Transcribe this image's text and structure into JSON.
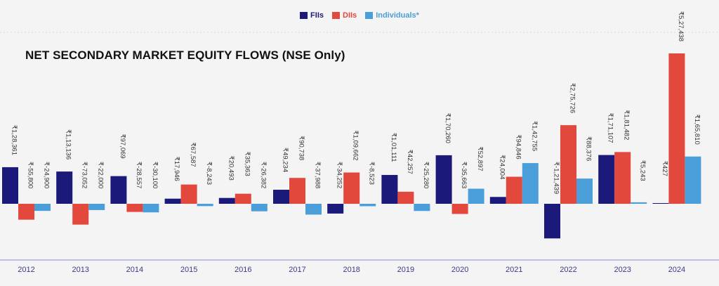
{
  "legend": {
    "items": [
      {
        "name": "FIIs",
        "color": "#1b1a7a"
      },
      {
        "name": "DIIs",
        "color": "#e3483d"
      },
      {
        "name": "Individuals*",
        "color": "#4a9ed9"
      }
    ]
  },
  "chart_data": {
    "type": "bar",
    "title": "NET SECONDARY MARKET EQUITY FLOWS (NSE Only)",
    "xlabel": "",
    "ylabel": "",
    "legend_position": "top-center",
    "grid": false,
    "ylim": [
      -125000,
      530000
    ],
    "categories": [
      "2012",
      "2013",
      "2014",
      "2015",
      "2016",
      "2017",
      "2018",
      "2019",
      "2020",
      "2021",
      "2022",
      "2023",
      "2024"
    ],
    "series": [
      {
        "name": "FIIs",
        "color": "#1b1a7a",
        "values": [
          128361,
          113136,
          97069,
          17946,
          20493,
          49234,
          -34252,
          101111,
          170260,
          24004,
          -121439,
          171107,
          427
        ],
        "labels": [
          "₹1,28,361",
          "₹1,13,136",
          "₹97,069",
          "₹17,946",
          "₹20,493",
          "₹49,234",
          "₹-34,252",
          "₹1,01,111",
          "₹1,70,260",
          "₹24,004",
          "₹-1,21,439",
          "₹1,71,107",
          "₹427"
        ]
      },
      {
        "name": "DIIs",
        "color": "#e3483d",
        "values": [
          -55800,
          -73052,
          -28557,
          67587,
          35363,
          90738,
          109662,
          42257,
          -35663,
          94846,
          275726,
          181482,
          527438
        ],
        "labels": [
          "₹-55,800",
          "₹-73,052",
          "₹-28,557",
          "₹67,587",
          "₹35,363",
          "₹90,738",
          "₹1,09,662",
          "₹42,257",
          "₹-35,663",
          "₹94,846",
          "₹2,75,726",
          "₹1,81,482",
          "₹5,27,438"
        ]
      },
      {
        "name": "Individuals*",
        "color": "#4a9ed9",
        "values": [
          -24900,
          -22000,
          -30100,
          -8243,
          -26382,
          -37988,
          -8523,
          -25280,
          52897,
          142755,
          88376,
          5243,
          165810
        ],
        "labels": [
          "₹-24,900",
          "₹-22,000",
          "₹-30,100",
          "₹-8,243",
          "₹-26,382",
          "₹-37,988",
          "₹-8,523",
          "₹-25,280",
          "₹52,897",
          "₹1,42,755",
          "₹88,376",
          "₹5,243",
          "₹1,65,810"
        ]
      }
    ]
  }
}
